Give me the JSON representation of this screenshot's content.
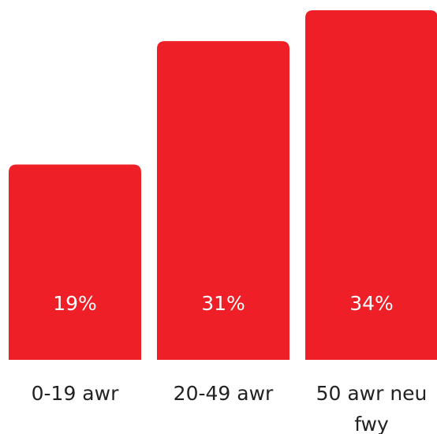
{
  "chart_data": {
    "type": "bar",
    "categories": [
      [
        "0-19 awr"
      ],
      [
        "20-49 awr"
      ],
      [
        "50 awr neu",
        "fwy"
      ]
    ],
    "values": [
      19,
      31,
      34
    ],
    "value_labels": [
      "19%",
      "31%",
      "34%"
    ],
    "ylim": [
      0,
      34
    ],
    "grid": false,
    "legend": "none",
    "title": "",
    "xlabel": "",
    "ylabel": ""
  },
  "colors": {
    "bar": "#ee1f27",
    "value_text": "#ffffff",
    "category_text": "#222222"
  }
}
